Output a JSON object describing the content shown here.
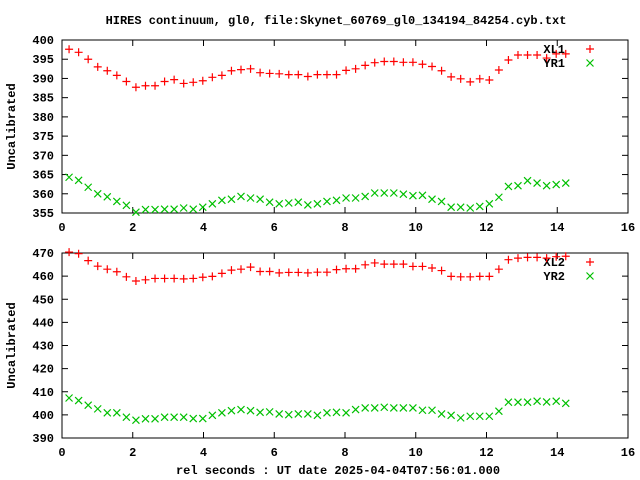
{
  "title": "HIRES continuum, gl0, file:Skynet_60769_gl0_134194_84254.cyb.txt",
  "xlabel": "rel seconds : UT date 2025-04-04T07:56:01.000",
  "chart_data": [
    {
      "type": "scatter",
      "ylabel": "Uncalibrated",
      "xlim": [
        0,
        16
      ],
      "ylim": [
        355,
        400
      ],
      "xticks": [
        0,
        2,
        4,
        6,
        8,
        10,
        12,
        14,
        16
      ],
      "yticks": [
        355,
        360,
        365,
        370,
        375,
        380,
        385,
        390,
        395,
        400
      ],
      "legend": "top-right",
      "x_start": 0.2,
      "x_step": 0.27,
      "series": [
        {
          "name": "XL1",
          "marker": "plus",
          "color": "#ff0000",
          "values": [
            397.6,
            396.8,
            395,
            393,
            392,
            390.8,
            389.2,
            387.7,
            388.1,
            388.1,
            389.2,
            389.7,
            388.7,
            389,
            389.4,
            390.3,
            390.8,
            392,
            392.3,
            392.5,
            391.5,
            391.3,
            391.2,
            391,
            391,
            390.5,
            391,
            391,
            391,
            392.1,
            392.5,
            393.4,
            394.1,
            394.4,
            394.4,
            394.2,
            394.2,
            393.7,
            393.1,
            392,
            390.4,
            389.9,
            389.1,
            389.9,
            389.6,
            392.2,
            394.8,
            396.1,
            396.1,
            396.1,
            395.3,
            396.4,
            396.4
          ]
        },
        {
          "name": "YR1",
          "marker": "cross",
          "color": "#00c000",
          "values": [
            364.3,
            363.5,
            361.7,
            360,
            359.2,
            358,
            357,
            355.2,
            355.9,
            355.9,
            356,
            356,
            356.3,
            356,
            356.5,
            357.4,
            358.3,
            358.6,
            359.3,
            358.9,
            358.6,
            357.8,
            357.4,
            357.6,
            357.8,
            357.1,
            357.4,
            358,
            358.3,
            358.9,
            358.9,
            359.3,
            360.2,
            360.2,
            360.2,
            359.9,
            359.5,
            359.6,
            358.6,
            358,
            356.5,
            356.5,
            356.3,
            356.7,
            357.4,
            359.1,
            361.9,
            362.1,
            363.4,
            362.8,
            362.1,
            362.4,
            362.8
          ]
        }
      ]
    },
    {
      "type": "scatter",
      "ylabel": "Uncalibrated",
      "xlim": [
        0,
        16
      ],
      "ylim": [
        390,
        470
      ],
      "xticks": [
        0,
        2,
        4,
        6,
        8,
        10,
        12,
        14,
        16
      ],
      "yticks": [
        390,
        400,
        410,
        420,
        430,
        440,
        450,
        460,
        470
      ],
      "legend": "top-right",
      "x_start": 0.2,
      "x_step": 0.27,
      "series": [
        {
          "name": "XL2",
          "marker": "plus",
          "color": "#ff0000",
          "values": [
            470.4,
            469.7,
            466.7,
            464.3,
            463,
            461.9,
            459.7,
            457.9,
            458.4,
            459,
            459,
            459,
            458.8,
            459,
            459.5,
            459.9,
            461.2,
            462.6,
            463,
            463.9,
            462,
            462,
            461.4,
            461.6,
            461.6,
            461.4,
            461.7,
            461.7,
            462.8,
            463.2,
            463.2,
            464.9,
            465.7,
            465.2,
            465.2,
            465.2,
            464.2,
            464.2,
            463.5,
            462.4,
            459.9,
            459.7,
            459.7,
            459.9,
            459.9,
            463,
            467.1,
            467.8,
            468.1,
            468.1,
            467.8,
            468.4,
            468.6
          ]
        },
        {
          "name": "YR2",
          "marker": "cross",
          "color": "#00c000",
          "values": [
            407.3,
            406.2,
            404.2,
            402.6,
            400.9,
            400.9,
            399,
            397.7,
            398.3,
            398.3,
            399,
            399,
            399,
            398.4,
            398.4,
            399.8,
            400.9,
            401.8,
            402.3,
            401.8,
            401.1,
            401.3,
            400.4,
            400.1,
            400.4,
            400.4,
            399.8,
            400.9,
            401.1,
            400.9,
            402.3,
            403,
            403,
            403.3,
            403,
            403,
            403,
            402,
            402,
            400.4,
            399.8,
            398.7,
            399.4,
            399.4,
            399.4,
            401.6,
            405.5,
            405.5,
            405.5,
            405.9,
            405.6,
            405.9,
            405
          ]
        }
      ]
    }
  ]
}
